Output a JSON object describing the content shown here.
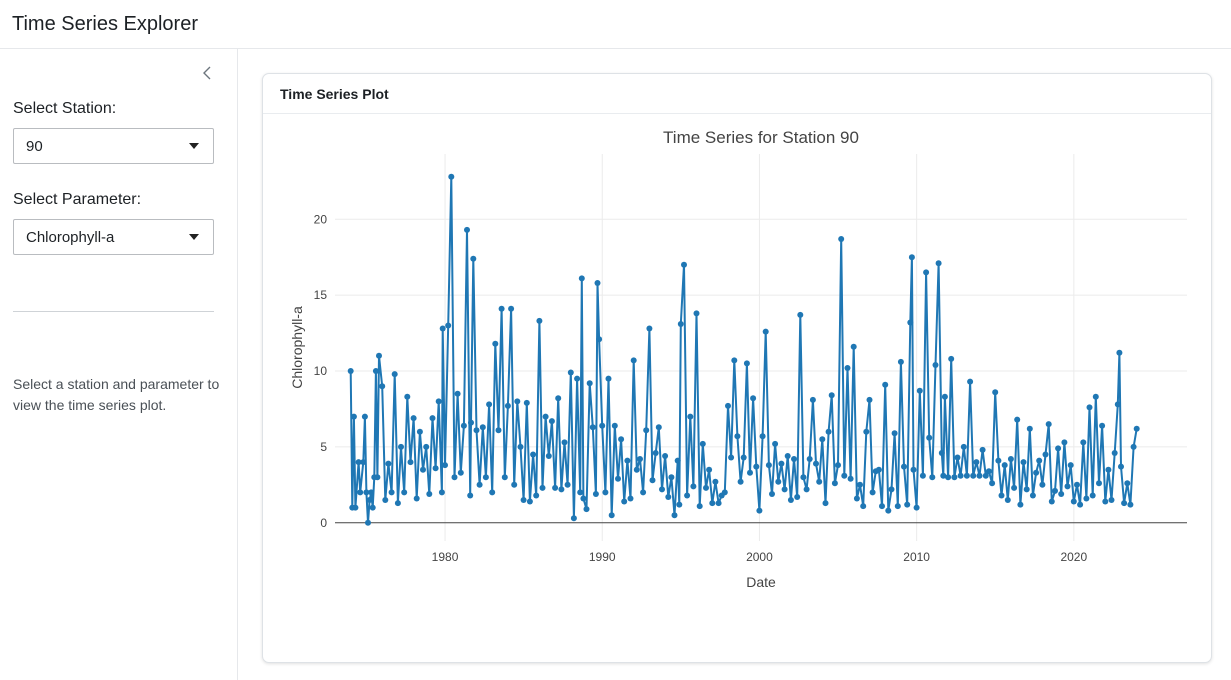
{
  "app": {
    "title": "Time Series Explorer"
  },
  "sidebar": {
    "station_label": "Select Station:",
    "station_value": "90",
    "parameter_label": "Select Parameter:",
    "parameter_value": "Chlorophyll-a",
    "help_text": "Select a station and parameter to view the time series plot."
  },
  "card": {
    "header": "Time Series Plot"
  },
  "chart_data": {
    "type": "line",
    "title": "Time Series for Station 90",
    "xlabel": "Date",
    "ylabel": "Chlorophyll-a",
    "xlim": [
      1973.0,
      2027.2
    ],
    "ylim": [
      -1.2,
      24.3
    ],
    "xticks": [
      1980,
      1990,
      2000,
      2010,
      2020
    ],
    "yticks": [
      0,
      5,
      10,
      15,
      20
    ],
    "grid": true,
    "markers": true,
    "color": "#1f77b4",
    "series": [
      {
        "x": [
          1974.0,
          1974.1,
          1974.2,
          1974.3,
          1974.5,
          1974.6,
          1974.8,
          1974.9,
          1975.0,
          1975.1,
          1975.2,
          1975.3,
          1975.4,
          1975.5,
          1975.6,
          1975.7,
          1975.8,
          1976.0,
          1976.2,
          1976.4,
          1976.6,
          1976.8,
          1977.0,
          1977.2,
          1977.4,
          1977.6,
          1977.8,
          1978.0,
          1978.2,
          1978.4,
          1978.6,
          1978.8,
          1979.0,
          1979.2,
          1979.4,
          1979.6,
          1979.8,
          1979.85,
          1980.0,
          1980.2,
          1980.4,
          1980.6,
          1980.8,
          1981.0,
          1981.2,
          1981.4,
          1981.6,
          1981.65,
          1981.8,
          1982.0,
          1982.2,
          1982.4,
          1982.6,
          1982.8,
          1983.0,
          1983.2,
          1983.4,
          1983.6,
          1983.8,
          1984.0,
          1984.2,
          1984.4,
          1984.6,
          1984.8,
          1985.0,
          1985.2,
          1985.4,
          1985.6,
          1985.8,
          1986.0,
          1986.2,
          1986.4,
          1986.6,
          1986.8,
          1987.0,
          1987.2,
          1987.4,
          1987.6,
          1987.8,
          1988.0,
          1988.2,
          1988.4,
          1988.6,
          1988.7,
          1988.8,
          1989.0,
          1989.2,
          1989.4,
          1989.6,
          1989.7,
          1989.8,
          1990.0,
          1990.2,
          1990.4,
          1990.6,
          1990.8,
          1991.0,
          1991.2,
          1991.4,
          1991.6,
          1991.8,
          1992.0,
          1992.2,
          1992.4,
          1992.6,
          1992.8,
          1993.0,
          1993.2,
          1993.4,
          1993.6,
          1993.8,
          1994.0,
          1994.2,
          1994.4,
          1994.6,
          1994.8,
          1994.9,
          1995.0,
          1995.2,
          1995.4,
          1995.6,
          1995.8,
          1996.0,
          1996.2,
          1996.4,
          1996.6,
          1996.8,
          1997.0,
          1997.2,
          1997.4,
          1997.6,
          1997.8,
          1998.0,
          1998.2,
          1998.4,
          1998.6,
          1998.8,
          1999.0,
          1999.2,
          1999.4,
          1999.6,
          1999.8,
          2000.0,
          2000.2,
          2000.4,
          2000.6,
          2000.8,
          2001.0,
          2001.2,
          2001.4,
          2001.6,
          2001.8,
          2002.0,
          2002.2,
          2002.4,
          2002.6,
          2002.8,
          2003.0,
          2003.2,
          2003.4,
          2003.6,
          2003.8,
          2004.0,
          2004.2,
          2004.4,
          2004.6,
          2004.8,
          2005.0,
          2005.2,
          2005.4,
          2005.6,
          2005.8,
          2006.0,
          2006.2,
          2006.4,
          2006.6,
          2006.8,
          2007.0,
          2007.2,
          2007.4,
          2007.6,
          2007.8,
          2008.0,
          2008.2,
          2008.4,
          2008.6,
          2008.8,
          2009.0,
          2009.2,
          2009.4,
          2009.6,
          2009.7,
          2009.8,
          2010.0,
          2010.2,
          2010.4,
          2010.6,
          2010.8,
          2011.0,
          2011.2,
          2011.4,
          2011.6,
          2011.7,
          2011.8,
          2012.0,
          2012.2,
          2012.4,
          2012.6,
          2012.8,
          2013.0,
          2013.2,
          2013.4,
          2013.6,
          2013.8,
          2014.0,
          2014.2,
          2014.4,
          2014.6,
          2014.8,
          2015.0,
          2015.2,
          2015.4,
          2015.6,
          2015.8,
          2016.0,
          2016.2,
          2016.4,
          2016.6,
          2016.8,
          2017.0,
          2017.2,
          2017.4,
          2017.6,
          2017.8,
          2018.0,
          2018.2,
          2018.4,
          2018.6,
          2018.8,
          2019.0,
          2019.2,
          2019.4,
          2019.6,
          2019.8,
          2020.0,
          2020.2,
          2020.4,
          2020.6,
          2020.8,
          2021.0,
          2021.2,
          2021.4,
          2021.6,
          2021.8,
          2022.0,
          2022.2,
          2022.4,
          2022.6,
          2022.8,
          2022.9,
          2023.0,
          2023.2,
          2023.4,
          2023.6,
          2023.8,
          2024.0
        ],
        "y": [
          10.0,
          1.0,
          7.0,
          1.0,
          4.0,
          2.0,
          4.0,
          7.0,
          2.0,
          0.0,
          1.5,
          2.0,
          1.0,
          3.0,
          10.0,
          3.0,
          11.0,
          9.0,
          1.5,
          3.9,
          2.0,
          9.8,
          1.3,
          5.0,
          2.0,
          8.3,
          4.0,
          6.9,
          1.6,
          6.0,
          3.5,
          5.0,
          1.9,
          6.9,
          3.6,
          8.0,
          2.0,
          12.8,
          3.8,
          13.0,
          22.8,
          3.0,
          8.5,
          3.3,
          6.4,
          19.3,
          1.8,
          6.6,
          17.4,
          6.1,
          2.5,
          6.3,
          3.0,
          7.8,
          2.0,
          11.8,
          6.1,
          14.1,
          3.0,
          7.7,
          14.1,
          2.5,
          8.0,
          5.0,
          1.5,
          7.9,
          1.4,
          4.5,
          1.8,
          13.3,
          2.3,
          7.0,
          4.4,
          6.7,
          2.3,
          8.2,
          2.2,
          5.3,
          2.5,
          9.9,
          0.3,
          9.5,
          2.0,
          16.1,
          1.6,
          0.9,
          9.2,
          6.3,
          1.9,
          15.8,
          12.1,
          6.4,
          2.0,
          9.5,
          0.5,
          6.4,
          2.9,
          5.5,
          1.4,
          4.1,
          1.6,
          10.7,
          3.5,
          4.2,
          2.0,
          6.1,
          12.8,
          2.8,
          4.6,
          6.3,
          2.2,
          4.4,
          1.7,
          3.0,
          0.5,
          4.1,
          1.2,
          13.1,
          17.0,
          1.8,
          7.0,
          2.4,
          13.8,
          1.1,
          5.2,
          2.3,
          3.5,
          1.3,
          2.7,
          1.3,
          1.8,
          2.0,
          7.7,
          4.3,
          10.7,
          5.7,
          2.7,
          4.3,
          10.5,
          3.3,
          8.2,
          3.7,
          0.8,
          5.7,
          12.6,
          3.8,
          1.9,
          5.2,
          2.7,
          3.9,
          2.2,
          4.4,
          1.5,
          4.2,
          1.7,
          13.7,
          3.0,
          2.2,
          4.2,
          8.1,
          3.9,
          2.7,
          5.5,
          1.3,
          6.0,
          8.4,
          2.6,
          3.8,
          18.7,
          3.1,
          10.2,
          2.9,
          11.6,
          1.6,
          2.5,
          1.1,
          6.0,
          8.1,
          2.0,
          3.4,
          3.5,
          1.1,
          9.1,
          0.8,
          2.2,
          5.9,
          1.1,
          10.6,
          3.7,
          1.2,
          13.2,
          17.5,
          3.5,
          1.0,
          8.7,
          3.1,
          16.5,
          5.6,
          3.0,
          10.4,
          17.1,
          4.6,
          3.1,
          8.3,
          3.0,
          10.8,
          3.0,
          4.3,
          3.1,
          5.0,
          3.1,
          9.3,
          3.1,
          4.0,
          3.1,
          4.8,
          3.1,
          3.4,
          2.6,
          8.6,
          4.1,
          1.8,
          3.8,
          1.5,
          4.2,
          2.3,
          6.8,
          1.2,
          4.0,
          2.2,
          6.2,
          1.8,
          3.3,
          4.1,
          2.5,
          4.5,
          6.5,
          1.4,
          2.1,
          4.9,
          1.9,
          5.3,
          2.4,
          3.8,
          1.4,
          2.5,
          1.2,
          5.3,
          1.6,
          7.6,
          1.8,
          8.3,
          2.6,
          6.4,
          1.4,
          3.5,
          1.5,
          4.6,
          7.8,
          11.2,
          3.7,
          1.3,
          2.6,
          1.2,
          5.0,
          6.2
        ]
      }
    ]
  }
}
